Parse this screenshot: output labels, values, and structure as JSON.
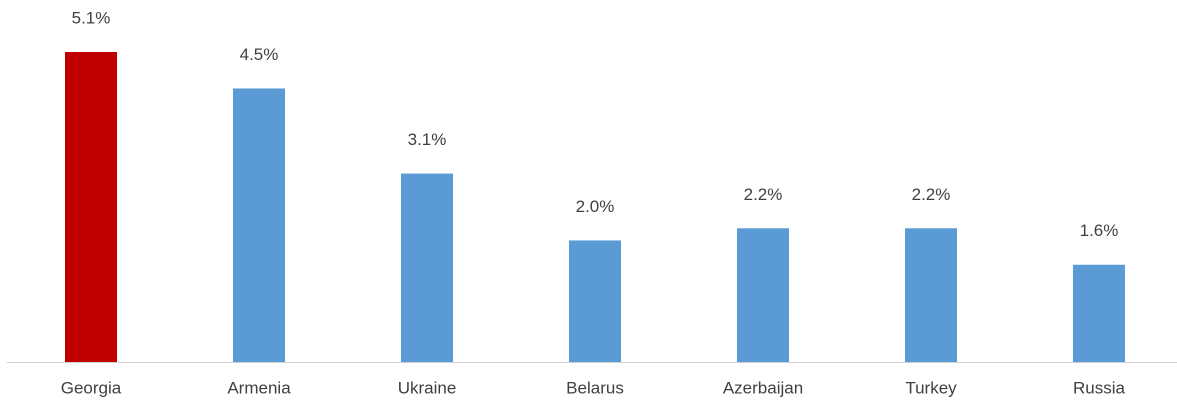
{
  "chart_data": {
    "type": "bar",
    "categories": [
      "Georgia",
      "Armenia",
      "Ukraine",
      "Belarus",
      "Azerbaijan",
      "Turkey",
      "Russia"
    ],
    "values": [
      5.1,
      4.5,
      3.1,
      2.0,
      2.2,
      2.2,
      1.6
    ],
    "value_labels": [
      "5.1%",
      "4.5%",
      "3.1%",
      "2.0%",
      "2.2%",
      "2.2%",
      "1.6%"
    ],
    "colors": [
      "#c00000",
      "#5b9bd5",
      "#5b9bd5",
      "#5b9bd5",
      "#5b9bd5",
      "#5b9bd5",
      "#5b9bd5"
    ],
    "ylim": [
      0,
      5.1
    ]
  }
}
